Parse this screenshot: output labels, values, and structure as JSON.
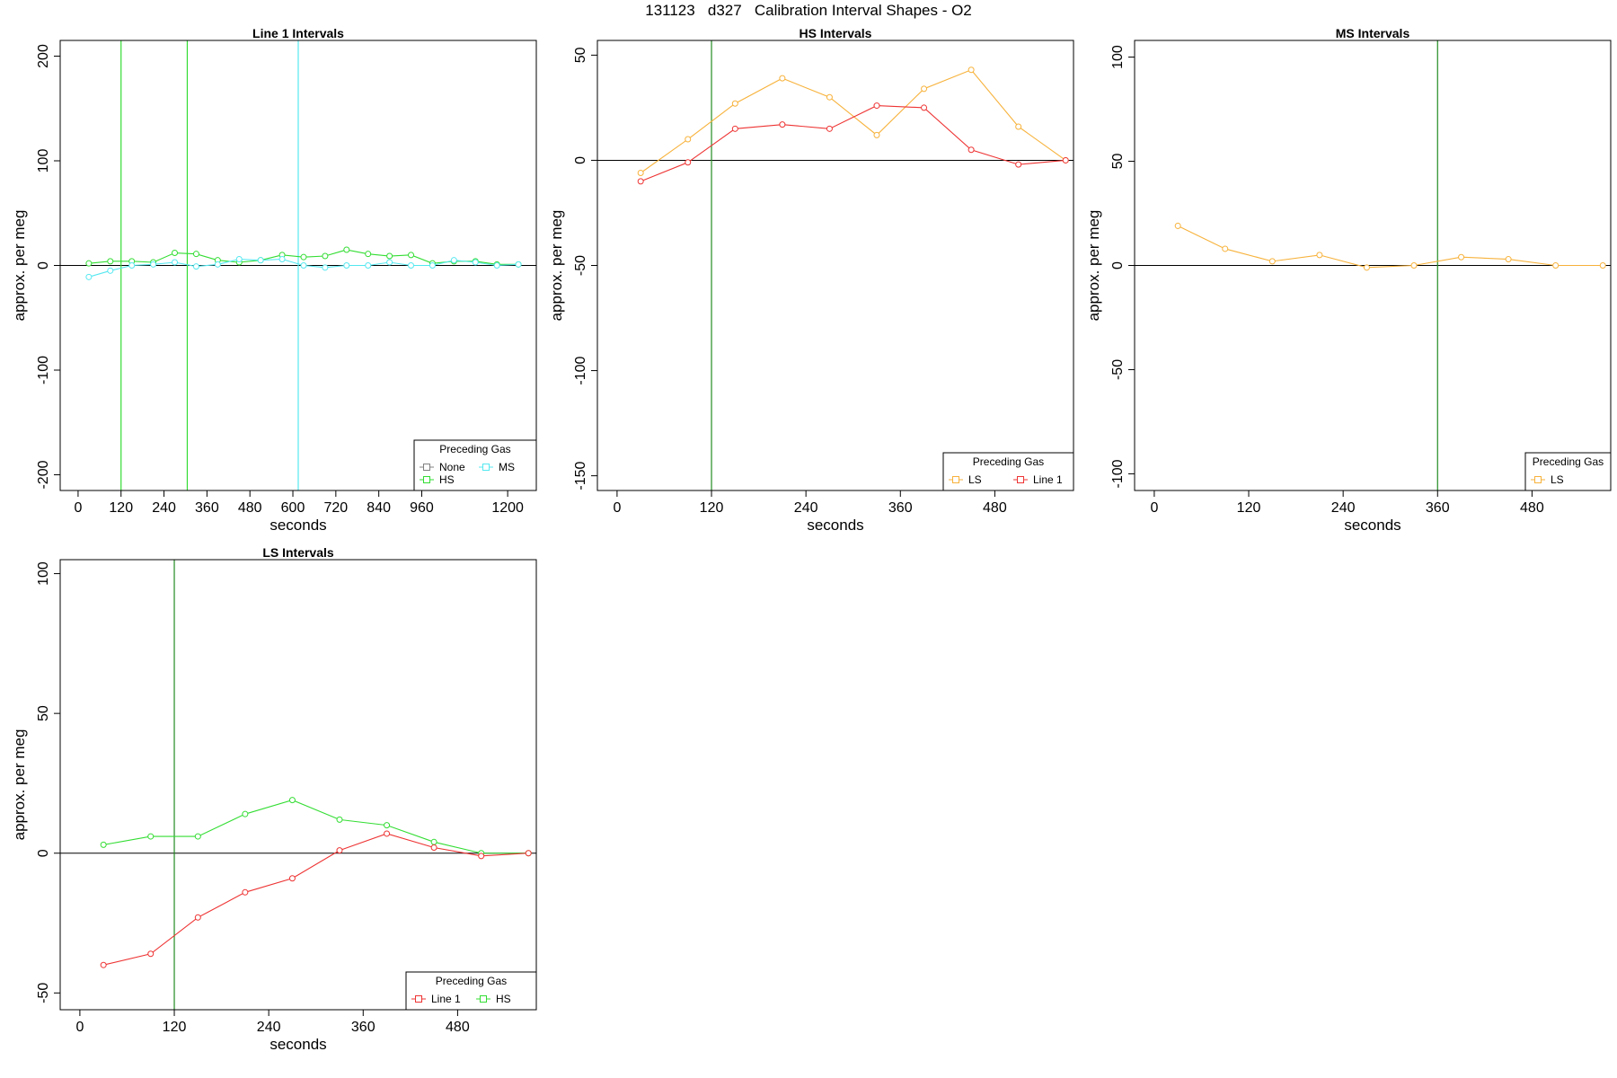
{
  "title": "131123   d327   Calibration Interval Shapes - O2",
  "colors": {
    "None": "#808080",
    "HS": "#33dd33",
    "MS": "#55e8f0",
    "LS": "#f7b23b",
    "Line 1": "#ee3333",
    "vline": "#228b22",
    "axis": "#000000"
  },
  "chart_data": [
    {
      "type": "line",
      "title": "Line 1 Intervals",
      "xlabel": "seconds",
      "ylabel": "approx. per meg",
      "xlim": [
        -50,
        1280
      ],
      "ylim": [
        -215,
        215
      ],
      "xticks": [
        0,
        120,
        240,
        360,
        480,
        600,
        720,
        840,
        960,
        1200
      ],
      "yticks": [
        -200,
        -100,
        0,
        100,
        200
      ],
      "hline": 0,
      "vlines": [
        {
          "x": 120,
          "color": "HS"
        },
        {
          "x": 305,
          "color": "HS"
        },
        {
          "x": 615,
          "color": "MS"
        }
      ],
      "legend": {
        "title": "Preceding Gas",
        "entries": [
          "None",
          "HS",
          "MS"
        ],
        "position": "bottom-right"
      },
      "series": [
        {
          "name": "HS",
          "x": [
            30,
            90,
            150,
            210,
            270,
            330,
            390,
            450,
            510,
            570,
            630,
            690,
            750,
            810,
            870,
            930,
            990,
            1050,
            1110,
            1170,
            1230
          ],
          "y": [
            2,
            4,
            4,
            3,
            12,
            11,
            5,
            3,
            5,
            10,
            8,
            9,
            15,
            11,
            9,
            10,
            2,
            4,
            4,
            1,
            1
          ]
        },
        {
          "name": "MS",
          "x": [
            30,
            90,
            150,
            210,
            270,
            330,
            390,
            450,
            510,
            570,
            630,
            690,
            750,
            810,
            870,
            930,
            990,
            1050,
            1110,
            1170,
            1230
          ],
          "y": [
            -11,
            -5,
            0,
            1,
            3,
            -1,
            1,
            6,
            5,
            6,
            0,
            -2,
            0,
            0,
            3,
            0,
            0,
            5,
            3,
            0,
            1
          ]
        }
      ]
    },
    {
      "type": "line",
      "title": "HS Intervals",
      "xlabel": "seconds",
      "ylabel": "approx. per meg",
      "xlim": [
        -25,
        580
      ],
      "ylim": [
        -157,
        57
      ],
      "xticks": [
        0,
        120,
        240,
        360,
        480
      ],
      "yticks": [
        -150,
        -100,
        -50,
        0,
        50
      ],
      "hline": 0,
      "vlines": [
        {
          "x": 120,
          "color": "vline"
        }
      ],
      "legend": {
        "title": "Preceding Gas",
        "entries": [
          "LS",
          "Line 1"
        ],
        "position": "bottom-right"
      },
      "series": [
        {
          "name": "LS",
          "x": [
            30,
            90,
            150,
            210,
            270,
            330,
            390,
            450,
            510,
            570
          ],
          "y": [
            -6,
            10,
            27,
            39,
            30,
            12,
            34,
            43,
            16,
            0
          ]
        },
        {
          "name": "Line 1",
          "x": [
            30,
            90,
            150,
            210,
            270,
            330,
            390,
            450,
            510,
            570
          ],
          "y": [
            -10,
            -1,
            15,
            17,
            15,
            26,
            25,
            5,
            -2,
            0
          ]
        }
      ]
    },
    {
      "type": "line",
      "title": "MS Intervals",
      "xlabel": "seconds",
      "ylabel": "approx. per meg",
      "xlim": [
        -25,
        580
      ],
      "ylim": [
        -108,
        108
      ],
      "xticks": [
        0,
        120,
        240,
        360,
        480
      ],
      "yticks": [
        -100,
        -50,
        0,
        50,
        100
      ],
      "hline": 0,
      "vlines": [
        {
          "x": 360,
          "color": "vline"
        }
      ],
      "legend": {
        "title": "Preceding Gas",
        "entries": [
          "LS"
        ],
        "position": "bottom-right"
      },
      "series": [
        {
          "name": "LS",
          "x": [
            30,
            90,
            150,
            210,
            270,
            330,
            390,
            450,
            510,
            570
          ],
          "y": [
            19,
            8,
            2,
            5,
            -1,
            0,
            4,
            3,
            0,
            0
          ]
        }
      ]
    },
    {
      "type": "line",
      "title": "LS Intervals",
      "xlabel": "seconds",
      "ylabel": "approx. per meg",
      "xlim": [
        -25,
        580
      ],
      "ylim": [
        -56,
        105
      ],
      "xticks": [
        0,
        120,
        240,
        360,
        480
      ],
      "yticks": [
        -50,
        0,
        50,
        100
      ],
      "hline": 0,
      "vlines": [
        {
          "x": 120,
          "color": "vline"
        }
      ],
      "legend": {
        "title": "Preceding Gas",
        "entries": [
          "Line 1",
          "HS"
        ],
        "position": "bottom-right"
      },
      "series": [
        {
          "name": "HS",
          "x": [
            30,
            90,
            150,
            210,
            270,
            330,
            390,
            450,
            510,
            570
          ],
          "y": [
            3,
            6,
            6,
            14,
            19,
            12,
            10,
            4,
            0,
            0
          ]
        },
        {
          "name": "Line 1",
          "x": [
            30,
            90,
            150,
            210,
            270,
            330,
            390,
            450,
            510,
            570
          ],
          "y": [
            -40,
            -36,
            -23,
            -14,
            -9,
            1,
            7,
            2,
            -1,
            0
          ]
        }
      ]
    }
  ]
}
